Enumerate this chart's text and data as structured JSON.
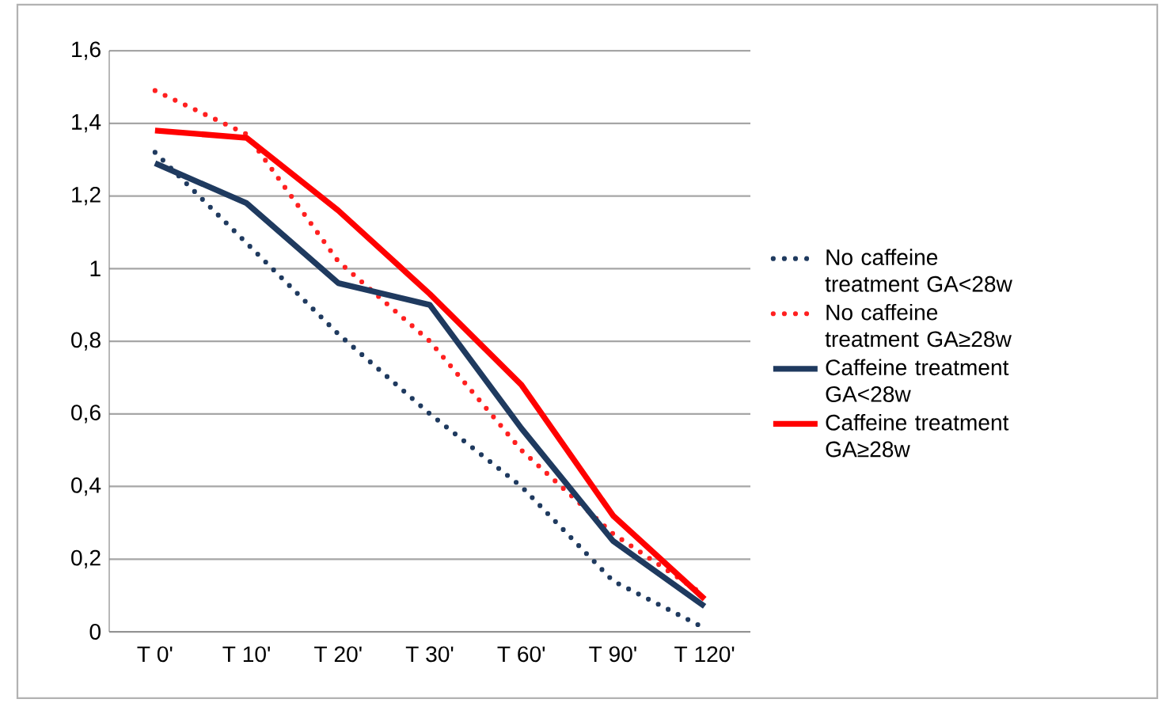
{
  "chart_data": {
    "type": "line",
    "categories": [
      "T 0'",
      "T 10'",
      "T 20'",
      "T 30'",
      "T 60'",
      "T 90'",
      "T 120'"
    ],
    "series": [
      {
        "name": "No caffeine treatment GA<28w",
        "color": "#1f3a5f",
        "line_style": "dotted",
        "values": [
          1.32,
          1.07,
          0.82,
          0.6,
          0.4,
          0.14,
          0.01
        ]
      },
      {
        "name": "No caffeine treatment GA≥28w",
        "color": "#ff2020",
        "line_style": "dotted",
        "values": [
          1.49,
          1.37,
          1.02,
          0.8,
          0.5,
          0.27,
          0.1
        ]
      },
      {
        "name": "Caffeine treatment GA<28w",
        "color": "#1f3a5f",
        "line_style": "solid",
        "values": [
          1.29,
          1.18,
          0.96,
          0.9,
          0.56,
          0.25,
          0.07
        ]
      },
      {
        "name": "Caffeine treatment GA≥28w",
        "color": "#ff0000",
        "line_style": "solid",
        "values": [
          1.38,
          1.36,
          1.16,
          0.93,
          0.68,
          0.32,
          0.09
        ]
      }
    ],
    "ylim": [
      0,
      1.6
    ],
    "yticks": [
      {
        "value": 0,
        "label": "0"
      },
      {
        "value": 0.2,
        "label": "0,2"
      },
      {
        "value": 0.4,
        "label": "0,4"
      },
      {
        "value": 0.6,
        "label": "0,6"
      },
      {
        "value": 0.8,
        "label": "0,8"
      },
      {
        "value": 1,
        "label": "1"
      },
      {
        "value": 1.2,
        "label": "1,2"
      },
      {
        "value": 1.4,
        "label": "1,4"
      },
      {
        "value": 1.6,
        "label": "1,6"
      }
    ],
    "grid": "y",
    "legend": "right",
    "marker": "none"
  }
}
